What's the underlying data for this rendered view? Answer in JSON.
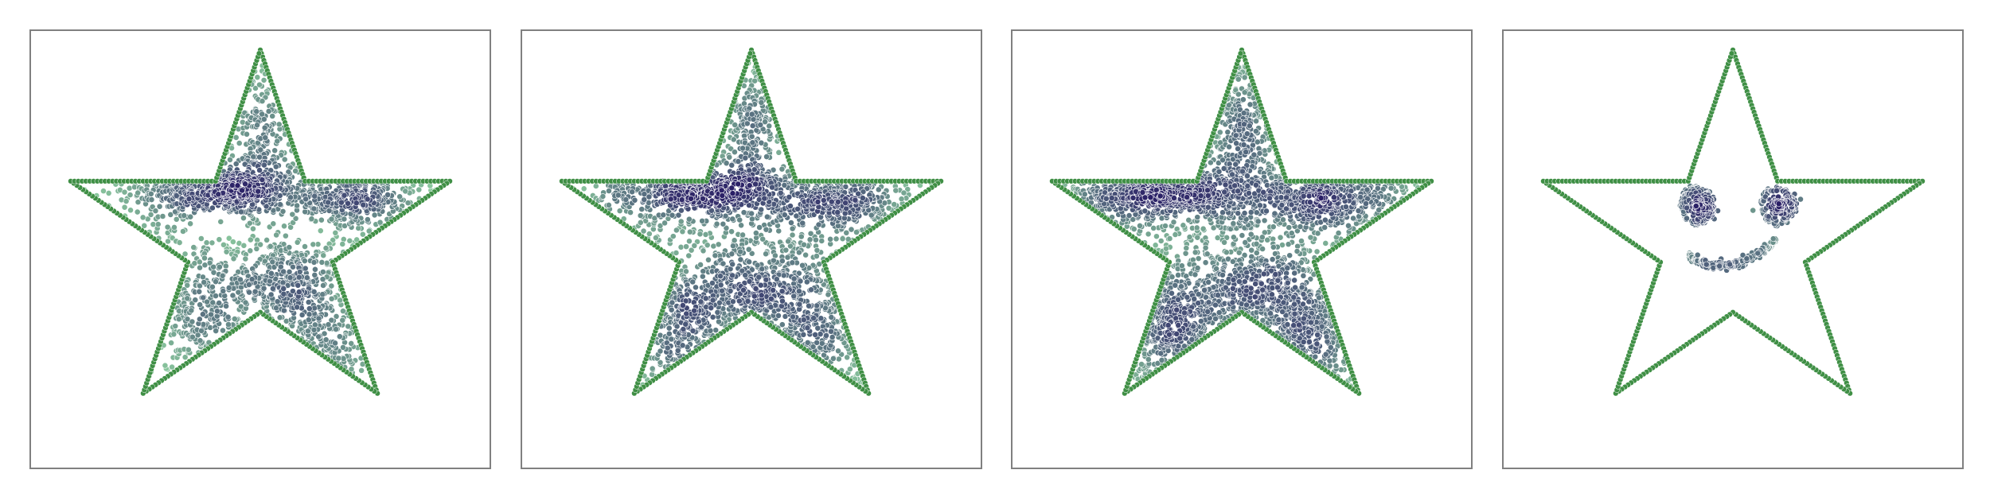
{
  "figure": {
    "background": "#ffffff",
    "frame_color": "#808080"
  },
  "chart_data": [
    {
      "type": "scatter",
      "title": "",
      "xlabel": "",
      "ylabel": "",
      "xlim": [
        -1.15,
        1.15
      ],
      "ylim": [
        -1.2,
        1.1
      ],
      "grid": false,
      "axes_visible": false,
      "colors": {
        "outline": "#3f8f45",
        "density_low": "#8fd0a0",
        "density_high": "#2a1e66"
      },
      "series": [
        {
          "role": "outline",
          "vertices": [
            [
              0,
              1.0
            ],
            [
              0.2245,
              0.309
            ],
            [
              0.9511,
              0.309
            ],
            [
              0.3633,
              -0.118
            ],
            [
              0.5878,
              -0.809
            ],
            [
              0,
              -0.382
            ],
            [
              -0.5878,
              -0.809
            ],
            [
              -0.3633,
              -0.118
            ],
            [
              -0.9511,
              0.309
            ],
            [
              -0.2245,
              0.309
            ]
          ],
          "points_per_edge": 38
        },
        {
          "role": "interior",
          "clusters": [
            {
              "x": -0.2,
              "y": 0.26,
              "sx": 0.2,
              "sy": 0.06,
              "n": 520
            },
            {
              "x": 0.42,
              "y": 0.22,
              "sx": 0.17,
              "sy": 0.07,
              "n": 280
            },
            {
              "x": 0.08,
              "y": -0.22,
              "sx": 0.2,
              "sy": 0.11,
              "n": 340
            },
            {
              "x": -0.3,
              "y": -0.42,
              "sx": 0.12,
              "sy": 0.15,
              "n": 140
            },
            {
              "x": 0.0,
              "y": 0.52,
              "sx": 0.05,
              "sy": 0.2,
              "n": 130
            },
            {
              "x": 0.3,
              "y": -0.55,
              "sx": 0.1,
              "sy": 0.15,
              "n": 120
            }
          ],
          "scatter_n": 520
        }
      ]
    },
    {
      "type": "scatter",
      "title": "",
      "xlabel": "",
      "ylabel": "",
      "xlim": [
        -1.15,
        1.15
      ],
      "ylim": [
        -1.2,
        1.1
      ],
      "grid": false,
      "axes_visible": false,
      "colors": {
        "outline": "#3f8f45",
        "density_low": "#8fd0a0",
        "density_high": "#2a1e66"
      },
      "series": [
        {
          "role": "outline",
          "vertices": [
            [
              0,
              1.0
            ],
            [
              0.2245,
              0.309
            ],
            [
              0.9511,
              0.309
            ],
            [
              0.3633,
              -0.118
            ],
            [
              0.5878,
              -0.809
            ],
            [
              0,
              -0.382
            ],
            [
              -0.5878,
              -0.809
            ],
            [
              -0.3633,
              -0.118
            ],
            [
              -0.9511,
              0.309
            ],
            [
              -0.2245,
              0.309
            ]
          ],
          "points_per_edge": 38
        },
        {
          "role": "interior",
          "clusters": [
            {
              "x": -0.28,
              "y": 0.26,
              "sx": 0.2,
              "sy": 0.06,
              "n": 460
            },
            {
              "x": 0.4,
              "y": 0.2,
              "sx": 0.18,
              "sy": 0.08,
              "n": 300
            },
            {
              "x": 0.02,
              "y": -0.25,
              "sx": 0.22,
              "sy": 0.12,
              "n": 360
            },
            {
              "x": -0.36,
              "y": -0.45,
              "sx": 0.12,
              "sy": 0.15,
              "n": 160
            },
            {
              "x": 0.0,
              "y": 0.55,
              "sx": 0.05,
              "sy": 0.2,
              "n": 160
            },
            {
              "x": 0.34,
              "y": -0.52,
              "sx": 0.11,
              "sy": 0.16,
              "n": 140
            }
          ],
          "scatter_n": 720
        }
      ]
    },
    {
      "type": "scatter",
      "title": "",
      "xlabel": "",
      "ylabel": "",
      "xlim": [
        -1.15,
        1.15
      ],
      "ylim": [
        -1.2,
        1.1
      ],
      "grid": false,
      "axes_visible": false,
      "colors": {
        "outline": "#3f8f45",
        "density_low": "#8fd0a0",
        "density_high": "#2a1e66"
      },
      "series": [
        {
          "role": "outline",
          "vertices": [
            [
              0,
              1.0
            ],
            [
              0.2245,
              0.309
            ],
            [
              0.9511,
              0.309
            ],
            [
              0.3633,
              -0.118
            ],
            [
              0.5878,
              -0.809
            ],
            [
              0,
              -0.382
            ],
            [
              -0.5878,
              -0.809
            ],
            [
              -0.3633,
              -0.118
            ],
            [
              -0.9511,
              0.309
            ],
            [
              -0.2245,
              0.309
            ]
          ],
          "points_per_edge": 38
        },
        {
          "role": "interior",
          "clusters": [
            {
              "x": -0.38,
              "y": 0.25,
              "sx": 0.22,
              "sy": 0.07,
              "n": 560
            },
            {
              "x": 0.38,
              "y": 0.22,
              "sx": 0.2,
              "sy": 0.08,
              "n": 420
            },
            {
              "x": 0.05,
              "y": -0.3,
              "sx": 0.2,
              "sy": 0.14,
              "n": 460
            },
            {
              "x": -0.35,
              "y": -0.48,
              "sx": 0.12,
              "sy": 0.16,
              "n": 220
            },
            {
              "x": 0.0,
              "y": 0.55,
              "sx": 0.06,
              "sy": 0.2,
              "n": 200
            },
            {
              "x": 0.34,
              "y": -0.5,
              "sx": 0.11,
              "sy": 0.17,
              "n": 200
            }
          ],
          "scatter_n": 900
        }
      ]
    },
    {
      "type": "scatter",
      "title": "",
      "xlabel": "",
      "ylabel": "",
      "xlim": [
        -1.15,
        1.15
      ],
      "ylim": [
        -1.2,
        1.1
      ],
      "grid": false,
      "axes_visible": false,
      "colors": {
        "outline": "#3f8f45",
        "density_low": "#8fd0a0",
        "density_high": "#2a1e66"
      },
      "series": [
        {
          "role": "outline",
          "vertices": [
            [
              0,
              1.0
            ],
            [
              0.2245,
              0.309
            ],
            [
              0.9511,
              0.309
            ],
            [
              0.3633,
              -0.118
            ],
            [
              0.5878,
              -0.809
            ],
            [
              0,
              -0.382
            ],
            [
              -0.5878,
              -0.809
            ],
            [
              -0.3633,
              -0.118
            ],
            [
              -0.9511,
              0.309
            ],
            [
              -0.2245,
              0.309
            ]
          ],
          "points_per_edge": 38
        },
        {
          "role": "interior",
          "features": [
            {
              "kind": "eye",
              "x": -0.18,
              "y": 0.18,
              "ring_r": 0.09,
              "core_s": 0.035,
              "n_ring": 110,
              "n_core": 90
            },
            {
              "kind": "eye",
              "x": 0.22,
              "y": 0.18,
              "ring_r": 0.09,
              "core_s": 0.035,
              "n_ring": 110,
              "n_core": 90
            },
            {
              "kind": "smile",
              "cx": 0.0,
              "cy": -0.04,
              "half_width": 0.22,
              "depth": 0.09,
              "n": 220
            }
          ]
        }
      ]
    }
  ]
}
